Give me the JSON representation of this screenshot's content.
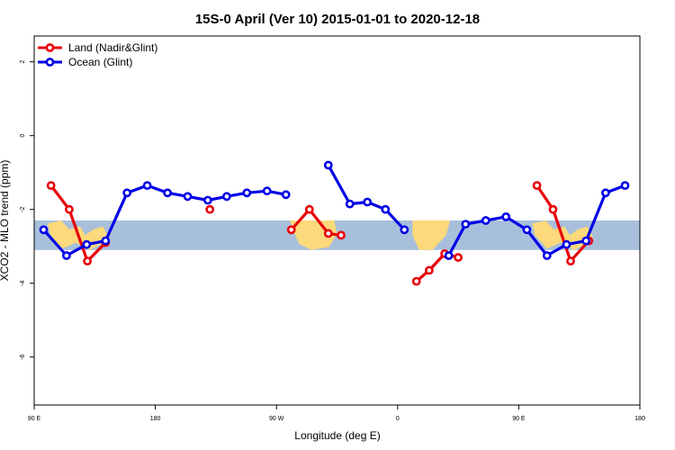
{
  "chart_data": {
    "type": "line",
    "title": "15S-0 April (Ver 10)   2015-01-01 to 2020-12-18",
    "xlabel": "Longitude (deg E)",
    "ylabel": "XCO2 - MLO trend (ppm)",
    "x_ticks": [
      {
        "value": 90,
        "label": "90 E"
      },
      {
        "value": 180,
        "label": "180"
      },
      {
        "value": 270,
        "label": "90 W"
      },
      {
        "value": 360,
        "label": "0"
      },
      {
        "value": 450,
        "label": "90 E"
      },
      {
        "value": 540,
        "label": "180"
      }
    ],
    "y_ticks": [
      {
        "value": -6,
        "label": "-6"
      },
      {
        "value": -4,
        "label": "-4"
      },
      {
        "value": -2,
        "label": "-2"
      },
      {
        "value": 0,
        "label": "0"
      },
      {
        "value": 2,
        "label": "2"
      }
    ],
    "xlim": [
      90,
      540
    ],
    "ylim": [
      -7.3,
      2.7
    ],
    "band": {
      "y_top": -2.3,
      "y_bottom": -3.1,
      "color": "#a8bfdc",
      "land_color": "#fcd97a"
    },
    "legend": {
      "position": "top-left"
    },
    "series": [
      {
        "name": "Land (Nadir&Glint)",
        "color": "#e8000b",
        "segments": [
          [
            [
              102.5,
              -1.35
            ],
            [
              116.0,
              -2.0
            ],
            [
              129.5,
              -3.4
            ],
            [
              143.0,
              -2.9
            ]
          ],
          [
            [
              220.5,
              -2.0
            ]
          ],
          [
            [
              281.0,
              -2.55
            ],
            [
              294.5,
              -2.0
            ],
            [
              308.5,
              -2.65
            ],
            [
              318.0,
              -2.7
            ]
          ],
          [
            [
              374.0,
              -3.95
            ],
            [
              383.5,
              -3.65
            ],
            [
              395.0,
              -3.2
            ],
            [
              405.0,
              -3.3
            ]
          ],
          [
            [
              463.5,
              -1.35
            ],
            [
              475.5,
              -2.0
            ],
            [
              488.5,
              -3.4
            ],
            [
              502.0,
              -2.85
            ]
          ]
        ]
      },
      {
        "name": "Ocean (Glint)",
        "color": "#0000e6",
        "segments": [
          [
            [
              97.0,
              -2.55
            ],
            [
              114.0,
              -3.25
            ],
            [
              129.0,
              -2.95
            ],
            [
              143.0,
              -2.85
            ],
            [
              159.0,
              -1.55
            ],
            [
              174.0,
              -1.35
            ],
            [
              189.0,
              -1.55
            ],
            [
              204.0,
              -1.65
            ],
            [
              219.0,
              -1.75
            ],
            [
              233.0,
              -1.65
            ],
            [
              248.0,
              -1.55
            ],
            [
              263.0,
              -1.5
            ],
            [
              277.0,
              -1.6
            ]
          ],
          [
            [
              308.5,
              -0.8
            ],
            [
              324.5,
              -1.85
            ],
            [
              337.5,
              -1.8
            ],
            [
              351.0,
              -2.0
            ],
            [
              365.0,
              -2.55
            ]
          ],
          [
            [
              398.0,
              -3.25
            ],
            [
              410.5,
              -2.4
            ],
            [
              425.5,
              -2.3
            ],
            [
              440.5,
              -2.2
            ],
            [
              456.0,
              -2.55
            ],
            [
              471.0,
              -3.25
            ],
            [
              485.5,
              -2.95
            ],
            [
              500.0,
              -2.85
            ],
            [
              514.5,
              -1.55
            ],
            [
              529.0,
              -1.35
            ]
          ]
        ]
      }
    ]
  }
}
